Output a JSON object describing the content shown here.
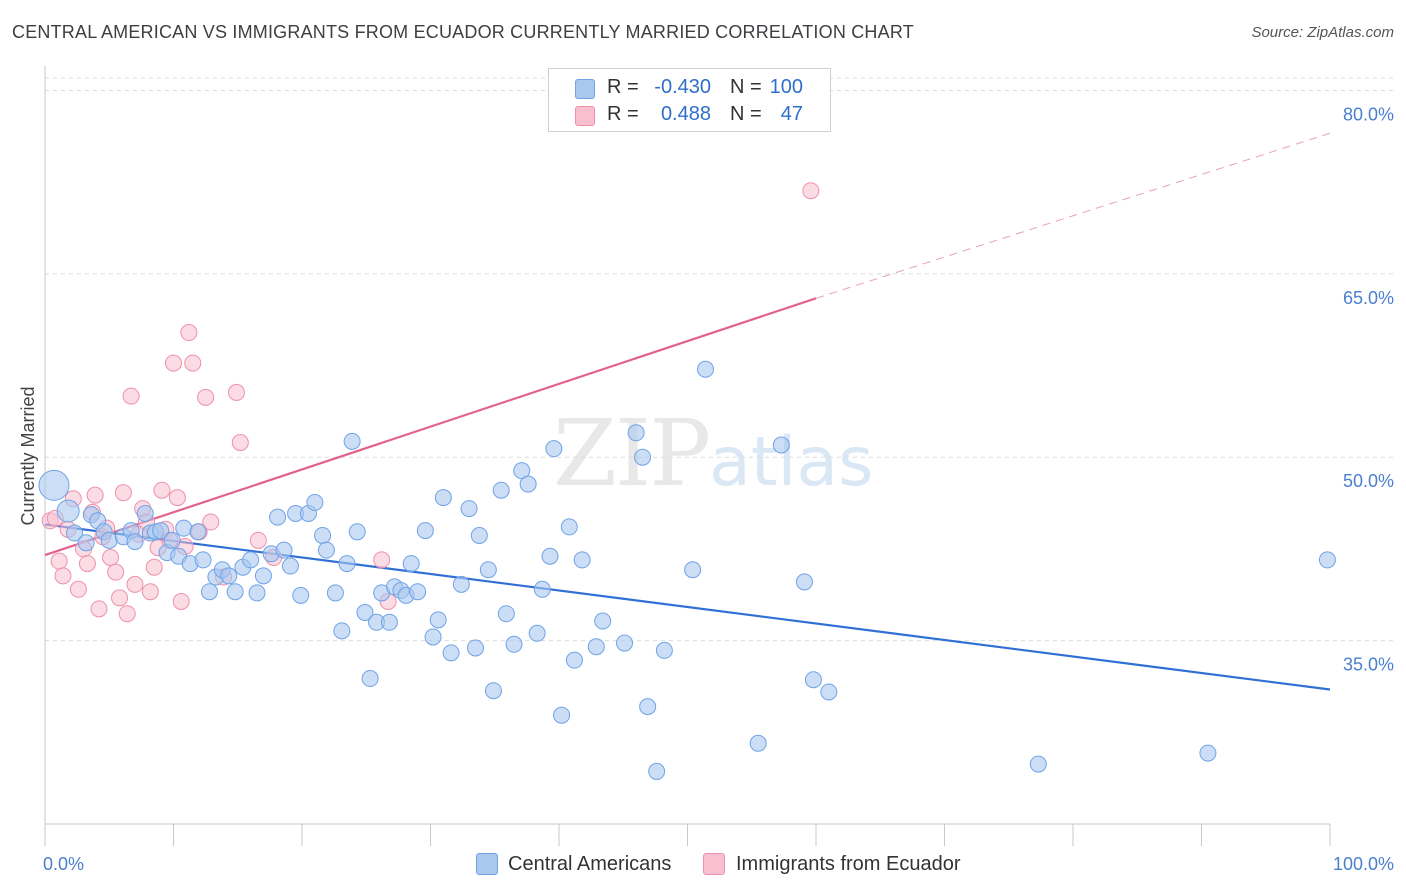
{
  "header": {
    "title": "CENTRAL AMERICAN VS IMMIGRANTS FROM ECUADOR CURRENTLY MARRIED CORRELATION CHART",
    "source": "Source: ZipAtlas.com"
  },
  "watermark": {
    "zip": "ZIP",
    "atlas": "atlas"
  },
  "legend": {
    "rows": [
      {
        "r_label": "R =",
        "r_value": "-0.430",
        "n_label": "N =",
        "n_value": "100",
        "color": "#a8c8f0"
      },
      {
        "r_label": "R =",
        "r_value": "0.488",
        "n_label": "N =",
        "n_value": "47",
        "color": "#f7bfd0"
      }
    ]
  },
  "bottom_legend": [
    {
      "label": "Central Americans",
      "color": "#a8c8f0"
    },
    {
      "label": "Immigrants from Ecuador",
      "color": "#f7bfd0"
    }
  ],
  "chart_data": {
    "type": "scatter",
    "title": "CENTRAL AMERICAN VS IMMIGRANTS FROM ECUADOR CURRENTLY MARRIED CORRELATION CHART",
    "xlabel": "",
    "ylabel": "Currently Married",
    "xlim": [
      0,
      100
    ],
    "ylim": [
      20,
      82
    ],
    "x_tick_labels": [
      "0.0%",
      "100.0%"
    ],
    "y_ticks": [
      35,
      50,
      65,
      80
    ],
    "y_tick_labels": [
      "35.0%",
      "50.0%",
      "65.0%",
      "80.0%"
    ],
    "grid": true,
    "legend_position": "top-center",
    "series": [
      {
        "name": "Central Americans",
        "color": "#6fa3e6",
        "fill": "#a8c8f0",
        "trend": {
          "x": [
            0,
            100
          ],
          "y": [
            44.5,
            31.0
          ]
        },
        "points": [
          [
            0.7,
            47.7
          ],
          [
            1.8,
            45.6
          ],
          [
            2.3,
            43.8
          ],
          [
            3.2,
            43.0
          ],
          [
            3.6,
            45.3
          ],
          [
            4.1,
            44.8
          ],
          [
            4.6,
            43.9
          ],
          [
            5.0,
            43.2
          ],
          [
            6.1,
            43.5
          ],
          [
            6.7,
            44.0
          ],
          [
            7.0,
            43.1
          ],
          [
            7.8,
            45.4
          ],
          [
            8.2,
            43.8
          ],
          [
            8.6,
            43.9
          ],
          [
            9.0,
            44.0
          ],
          [
            9.5,
            42.2
          ],
          [
            9.9,
            43.2
          ],
          [
            10.4,
            41.9
          ],
          [
            10.8,
            44.2
          ],
          [
            11.3,
            41.3
          ],
          [
            11.9,
            43.9
          ],
          [
            12.3,
            41.6
          ],
          [
            12.8,
            39.0
          ],
          [
            13.3,
            40.2
          ],
          [
            13.8,
            40.8
          ],
          [
            14.3,
            40.3
          ],
          [
            14.8,
            39.0
          ],
          [
            15.4,
            41.0
          ],
          [
            16.0,
            41.6
          ],
          [
            16.5,
            38.9
          ],
          [
            17.0,
            40.3
          ],
          [
            17.6,
            42.1
          ],
          [
            18.1,
            45.1
          ],
          [
            18.6,
            42.4
          ],
          [
            19.1,
            41.1
          ],
          [
            19.5,
            45.4
          ],
          [
            19.9,
            38.7
          ],
          [
            20.5,
            45.4
          ],
          [
            21.0,
            46.3
          ],
          [
            21.6,
            43.6
          ],
          [
            21.9,
            42.4
          ],
          [
            22.6,
            38.9
          ],
          [
            23.1,
            35.8
          ],
          [
            23.5,
            41.3
          ],
          [
            23.9,
            51.3
          ],
          [
            24.3,
            43.9
          ],
          [
            24.9,
            37.3
          ],
          [
            25.3,
            31.9
          ],
          [
            25.8,
            36.5
          ],
          [
            26.2,
            38.9
          ],
          [
            26.8,
            36.5
          ],
          [
            27.2,
            39.4
          ],
          [
            27.7,
            39.1
          ],
          [
            28.1,
            38.7
          ],
          [
            28.5,
            41.3
          ],
          [
            29.0,
            39.0
          ],
          [
            29.6,
            44.0
          ],
          [
            30.2,
            35.3
          ],
          [
            30.6,
            36.7
          ],
          [
            31.0,
            46.7
          ],
          [
            31.6,
            34.0
          ],
          [
            32.4,
            39.6
          ],
          [
            33.0,
            45.8
          ],
          [
            33.5,
            34.4
          ],
          [
            33.8,
            43.6
          ],
          [
            34.5,
            40.8
          ],
          [
            34.9,
            30.9
          ],
          [
            35.5,
            47.3
          ],
          [
            35.9,
            37.2
          ],
          [
            36.5,
            34.7
          ],
          [
            37.1,
            48.9
          ],
          [
            37.6,
            47.8
          ],
          [
            38.3,
            35.6
          ],
          [
            38.7,
            39.2
          ],
          [
            39.3,
            41.9
          ],
          [
            39.6,
            50.7
          ],
          [
            40.2,
            28.9
          ],
          [
            40.8,
            44.3
          ],
          [
            41.2,
            33.4
          ],
          [
            41.8,
            41.6
          ],
          [
            42.9,
            34.5
          ],
          [
            43.4,
            36.6
          ],
          [
            45.1,
            34.8
          ],
          [
            46.0,
            52.0
          ],
          [
            46.5,
            50.0
          ],
          [
            46.9,
            29.6
          ],
          [
            47.6,
            24.3
          ],
          [
            48.2,
            34.2
          ],
          [
            50.4,
            40.8
          ],
          [
            51.4,
            57.2
          ],
          [
            55.5,
            26.6
          ],
          [
            57.3,
            51.0
          ],
          [
            59.1,
            39.8
          ],
          [
            59.8,
            31.8
          ],
          [
            61.0,
            30.8
          ],
          [
            77.3,
            24.9
          ],
          [
            90.5,
            25.8
          ],
          [
            99.8,
            41.6
          ]
        ]
      },
      {
        "name": "Immigrants from Ecuador",
        "color": "#ee90ac",
        "fill": "#f7bfd0",
        "trend": {
          "x": [
            0,
            60
          ],
          "y": [
            42.0,
            63.0
          ]
        },
        "trend_dashed": {
          "x": [
            60,
            100
          ],
          "y": [
            63.0,
            76.5
          ]
        },
        "points": [
          [
            0.4,
            44.8
          ],
          [
            0.8,
            45.0
          ],
          [
            1.1,
            41.5
          ],
          [
            1.4,
            40.3
          ],
          [
            1.8,
            44.1
          ],
          [
            2.2,
            46.6
          ],
          [
            2.6,
            39.2
          ],
          [
            3.0,
            42.5
          ],
          [
            3.3,
            41.3
          ],
          [
            3.7,
            45.5
          ],
          [
            3.9,
            46.9
          ],
          [
            4.2,
            37.6
          ],
          [
            4.5,
            43.5
          ],
          [
            4.8,
            44.2
          ],
          [
            5.1,
            41.8
          ],
          [
            5.5,
            40.6
          ],
          [
            5.8,
            38.5
          ],
          [
            6.1,
            47.1
          ],
          [
            6.4,
            37.2
          ],
          [
            6.7,
            55.0
          ],
          [
            7.0,
            39.6
          ],
          [
            7.3,
            43.7
          ],
          [
            7.6,
            45.8
          ],
          [
            7.9,
            44.7
          ],
          [
            8.2,
            39.0
          ],
          [
            8.5,
            41.0
          ],
          [
            8.8,
            42.6
          ],
          [
            9.1,
            47.3
          ],
          [
            9.4,
            44.1
          ],
          [
            9.7,
            43.2
          ],
          [
            10.0,
            57.7
          ],
          [
            10.3,
            46.7
          ],
          [
            10.6,
            38.2
          ],
          [
            10.9,
            42.7
          ],
          [
            11.2,
            60.2
          ],
          [
            11.5,
            57.7
          ],
          [
            12.0,
            43.9
          ],
          [
            12.5,
            54.9
          ],
          [
            12.9,
            44.7
          ],
          [
            13.9,
            40.2
          ],
          [
            14.9,
            55.3
          ],
          [
            15.2,
            51.2
          ],
          [
            16.6,
            43.2
          ],
          [
            17.8,
            41.8
          ],
          [
            26.7,
            38.2
          ],
          [
            26.2,
            41.6
          ],
          [
            59.6,
            71.8
          ]
        ]
      }
    ]
  }
}
